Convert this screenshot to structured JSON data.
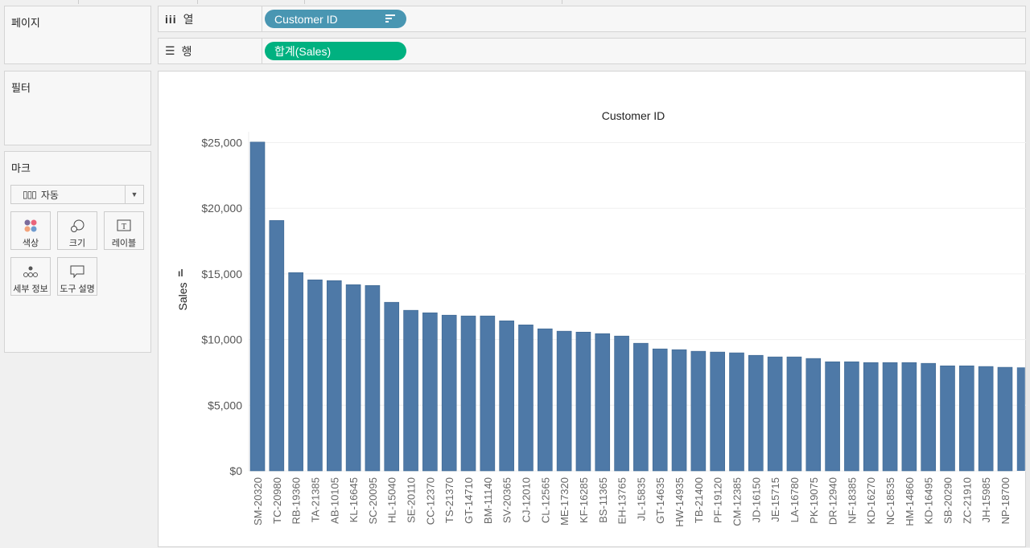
{
  "pages_card": {
    "title": "페이지"
  },
  "filters_card": {
    "title": "필터"
  },
  "marks_card": {
    "title": "마크",
    "mark_type": "자동",
    "buttons": [
      {
        "label": "색상",
        "icon": "color-dots-icon"
      },
      {
        "label": "크기",
        "icon": "size-circles-icon"
      },
      {
        "label": "레이블",
        "icon": "text-label-icon"
      },
      {
        "label": "세부 정보",
        "icon": "detail-dots-icon"
      },
      {
        "label": "도구 설명",
        "icon": "tooltip-bubble-icon"
      }
    ]
  },
  "columns_shelf": {
    "label": "열",
    "pill": "Customer ID",
    "pill_color": "#4996b2"
  },
  "rows_shelf": {
    "label": "행",
    "pill": "합계(Sales)",
    "pill_color": "#00b180"
  },
  "chart_data": {
    "type": "bar",
    "title": "Customer ID",
    "xlabel": "Customer ID",
    "ylabel": "Sales",
    "ylim": [
      0,
      25000
    ],
    "yticks": [
      0,
      5000,
      10000,
      15000,
      20000,
      25000
    ],
    "ytick_labels": [
      "$0",
      "$5,000",
      "$10,000",
      "$15,000",
      "$20,000",
      "$25,000"
    ],
    "bar_color": "#4e79a7",
    "grid": true,
    "categories": [
      "SM-20320",
      "TC-20980",
      "RB-19360",
      "TA-21385",
      "AB-10105",
      "KL-16645",
      "SC-20095",
      "HL-15040",
      "SE-20110",
      "CC-12370",
      "TS-21370",
      "GT-14710",
      "BM-11140",
      "SV-20365",
      "CJ-12010",
      "CL-12565",
      "ME-17320",
      "KF-16285",
      "BS-11365",
      "EH-13765",
      "JL-15835",
      "GT-14635",
      "HW-14935",
      "TB-21400",
      "PF-19120",
      "CM-12385",
      "JD-16150",
      "JE-15715",
      "LA-16780",
      "PK-19075",
      "DR-12940",
      "NF-18385",
      "KD-16270",
      "NC-18535",
      "HM-14860",
      "KD-16495",
      "SB-20290",
      "ZC-21910",
      "JH-15985",
      "NP-18700"
    ],
    "values": [
      25043,
      19070,
      15100,
      14550,
      14490,
      14180,
      14120,
      12840,
      12230,
      12040,
      11860,
      11800,
      11800,
      11430,
      11120,
      10820,
      10640,
      10570,
      10450,
      10270,
      9720,
      9290,
      9230,
      9110,
      9050,
      8990,
      8800,
      8680,
      8680,
      8560,
      8310,
      8310,
      8250,
      8250,
      8250,
      8190,
      8000,
      8000,
      7950,
      7890
    ]
  }
}
